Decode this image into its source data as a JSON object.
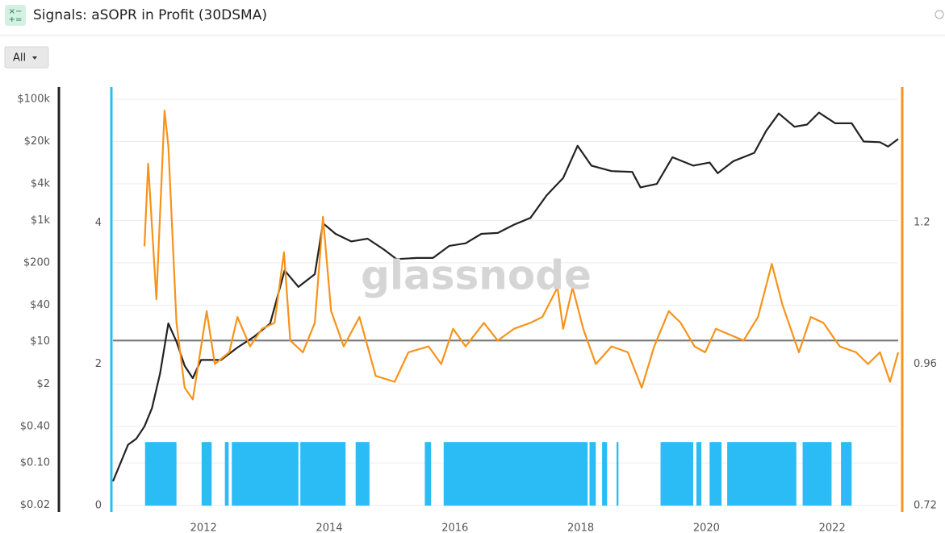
{
  "header": {
    "title": "Signals: aSOPR in Profit (30DSMA)"
  },
  "button": {
    "label": "All"
  },
  "watermark": "glassnode",
  "chart_data": {
    "type": "line",
    "xlim": [
      2010.56,
      2023.05
    ],
    "xticks": [
      2012,
      2014,
      2016,
      2018,
      2020,
      2022
    ],
    "ylim": [
      0.0155,
      158000
    ],
    "log_scale": true,
    "yticks": [
      {
        "value": 0.02,
        "label": "$0.02"
      },
      {
        "value": 0.1,
        "label": "$0.10"
      },
      {
        "value": 0.4,
        "label": "$0.40"
      },
      {
        "value": 2,
        "label": "$2"
      },
      {
        "value": 10,
        "label": "$10"
      },
      {
        "value": 40,
        "label": "$40"
      },
      {
        "value": 200,
        "label": "$200"
      },
      {
        "value": 1000,
        "label": "$1k"
      },
      {
        "value": 4000,
        "label": "$4k"
      },
      {
        "value": 20000,
        "label": "$20k"
      },
      {
        "value": 100000,
        "label": "$100k"
      }
    ],
    "y2lim": [
      0.709,
      1.43
    ],
    "y2ticks": [
      0.72,
      0.96,
      1.2
    ],
    "y3lim": [
      -0.09,
      5.92
    ],
    "y3ticks": [
      0,
      2,
      4
    ],
    "grid": true,
    "reference_line": {
      "value": 1,
      "axis": "y2",
      "color": "#777777"
    },
    "axis_colors": {
      "y": "#222222",
      "y2": "#f7931a",
      "y3": "#2bbcf6"
    },
    "series": [
      {
        "type": "bar",
        "axis": "y3",
        "color": "#2bbcf6",
        "x_start": [
          2011.07,
          2011.97,
          2012.34,
          2012.45,
          2013.54,
          2014.42,
          2015.52,
          2015.82,
          2018.14,
          2018.34,
          2018.57,
          2019.27,
          2019.84,
          2020.05,
          2020.33,
          2021.53,
          2022.14
        ],
        "x_end": [
          2011.57,
          2012.13,
          2012.4,
          2013.51,
          2014.26,
          2014.64,
          2015.62,
          2018.11,
          2018.24,
          2018.42,
          2018.6,
          2019.79,
          2019.92,
          2020.24,
          2021.43,
          2021.99,
          2022.31
        ],
        "values": [
          0.9,
          0.9,
          0.9,
          0.9,
          0.9,
          0.9,
          0.9,
          0.9,
          0.9,
          0.9,
          0.9,
          0.9,
          0.9,
          0.9,
          0.9,
          0.9,
          0.9
        ]
      },
      {
        "type": "line",
        "axis": "y",
        "color": "#222222",
        "x": [
          2010.56,
          2010.8,
          2010.93,
          2011.06,
          2011.18,
          2011.31,
          2011.44,
          2011.57,
          2011.7,
          2011.83,
          2011.96,
          2012.28,
          2012.54,
          2012.8,
          2013.06,
          2013.29,
          2013.51,
          2013.77,
          2013.9,
          2014.1,
          2014.35,
          2014.61,
          2014.87,
          2015.07,
          2015.39,
          2015.65,
          2015.91,
          2016.17,
          2016.42,
          2016.68,
          2016.94,
          2017.2,
          2017.46,
          2017.72,
          2017.95,
          2018.17,
          2018.49,
          2018.82,
          2018.95,
          2019.21,
          2019.46,
          2019.79,
          2020.05,
          2020.18,
          2020.43,
          2020.76,
          2020.95,
          2021.15,
          2021.4,
          2021.6,
          2021.79,
          2022.05,
          2022.31,
          2022.5,
          2022.76,
          2022.89,
          2023.05
        ],
        "values": [
          0.05,
          0.2,
          0.25,
          0.4,
          0.8,
          3,
          20,
          10,
          4,
          2.5,
          5,
          5,
          8,
          12,
          20,
          150,
          80,
          130,
          900,
          600,
          450,
          500,
          330,
          230,
          240,
          240,
          380,
          420,
          600,
          620,
          850,
          1100,
          2600,
          5000,
          17000,
          8000,
          6500,
          6300,
          3500,
          4000,
          11000,
          8000,
          9000,
          6000,
          9500,
          13000,
          30000,
          58000,
          35000,
          38000,
          60000,
          40000,
          40000,
          20000,
          19500,
          16500,
          22000
        ]
      },
      {
        "type": "line",
        "axis": "y2",
        "color": "#f7931a",
        "x": [
          2011.06,
          2011.12,
          2011.25,
          2011.38,
          2011.44,
          2011.57,
          2011.7,
          2011.83,
          2012.05,
          2012.18,
          2012.41,
          2012.54,
          2012.74,
          2012.93,
          2013.13,
          2013.28,
          2013.38,
          2013.58,
          2013.77,
          2013.9,
          2014.03,
          2014.23,
          2014.48,
          2014.74,
          2015.04,
          2015.26,
          2015.58,
          2015.78,
          2015.97,
          2016.17,
          2016.46,
          2016.68,
          2016.94,
          2017.2,
          2017.39,
          2017.63,
          2017.72,
          2017.87,
          2018.04,
          2018.24,
          2018.49,
          2018.75,
          2018.97,
          2019.17,
          2019.4,
          2019.59,
          2019.81,
          2019.98,
          2020.15,
          2020.37,
          2020.59,
          2020.82,
          2021.04,
          2021.21,
          2021.47,
          2021.66,
          2021.86,
          2022.12,
          2022.38,
          2022.57,
          2022.76,
          2022.92,
          2023.05
        ],
        "values": [
          1.16,
          1.3,
          1.07,
          1.39,
          1.33,
          1.03,
          0.92,
          0.9,
          1.05,
          0.96,
          0.98,
          1.04,
          0.99,
          1.02,
          1.03,
          1.15,
          1.0,
          0.98,
          1.03,
          1.21,
          1.05,
          0.99,
          1.04,
          0.94,
          0.93,
          0.98,
          0.99,
          0.96,
          1.02,
          0.99,
          1.03,
          1.0,
          1.02,
          1.03,
          1.04,
          1.09,
          1.02,
          1.09,
          1.02,
          0.96,
          0.99,
          0.98,
          0.92,
          0.99,
          1.05,
          1.03,
          0.99,
          0.98,
          1.02,
          1.01,
          1.0,
          1.04,
          1.13,
          1.06,
          0.98,
          1.04,
          1.03,
          0.99,
          0.98,
          0.96,
          0.98,
          0.93,
          0.98
        ]
      }
    ]
  }
}
